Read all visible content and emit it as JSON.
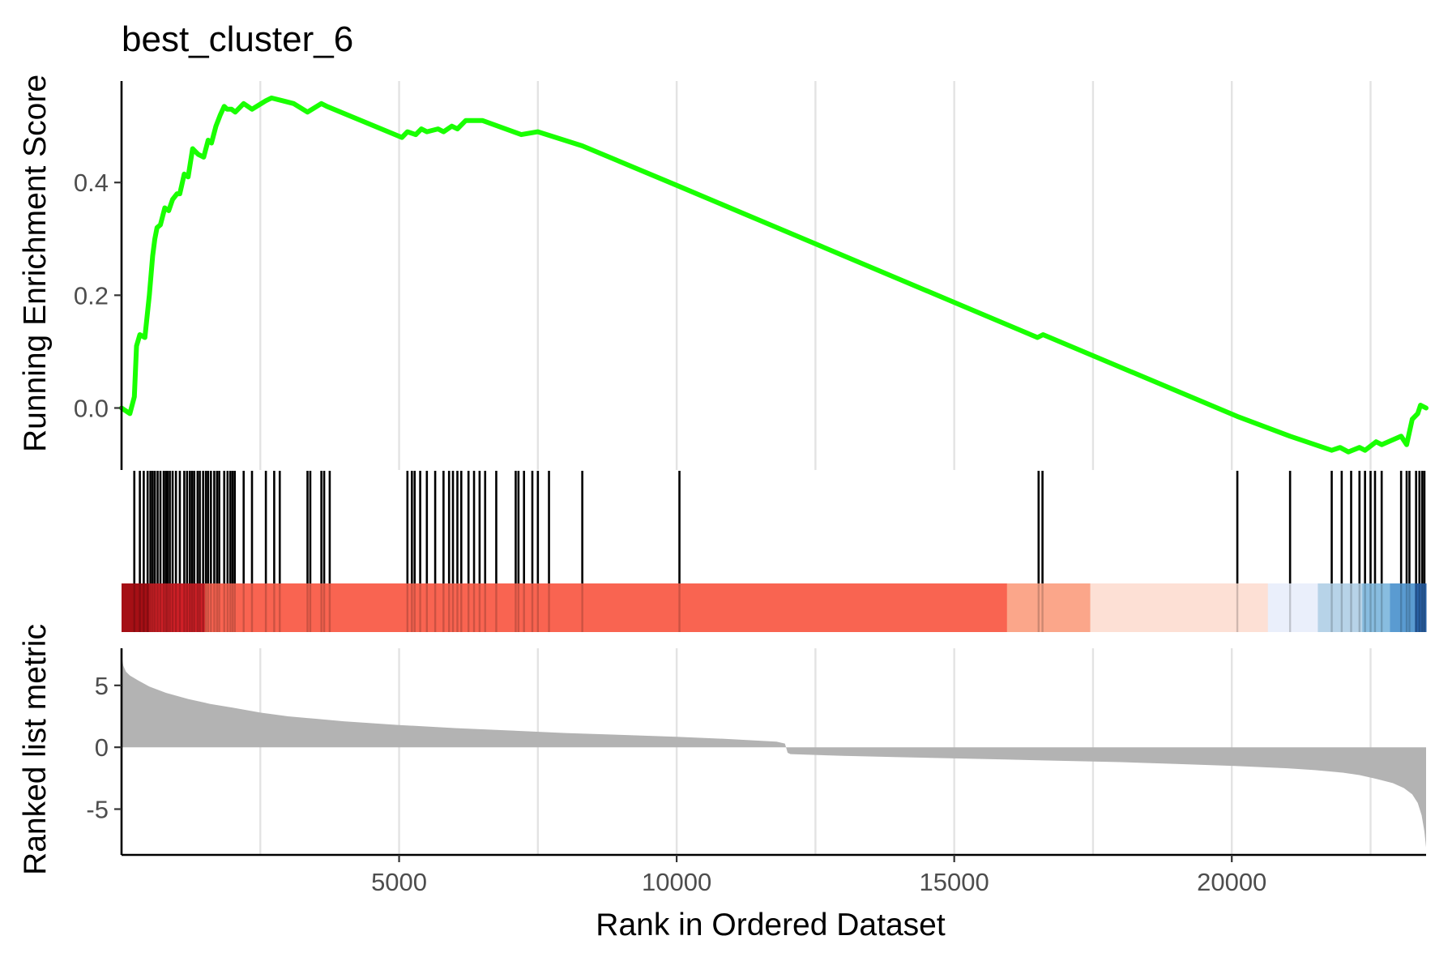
{
  "chart_data": {
    "type": "line",
    "title": "best_cluster_6",
    "xlabel": "Rank in Ordered Dataset",
    "x_range": [
      0,
      23500
    ],
    "x_ticks": [
      5000,
      10000,
      15000,
      20000
    ],
    "x_tick_labels": [
      "5000",
      "10000",
      "15000",
      "20000"
    ],
    "grid_x": [
      2500,
      5000,
      7500,
      10000,
      12500,
      15000,
      17500,
      20000,
      22500
    ],
    "panels": {
      "running_score": {
        "ylabel": "Running Enrichment Score",
        "ylim": [
          -0.11,
          0.58
        ],
        "y_ticks": [
          0.0,
          0.2,
          0.4
        ],
        "y_tick_labels": [
          "0.0",
          "0.2",
          "0.4"
        ],
        "line_color": "#19ff00",
        "series": {
          "x": [
            0,
            150,
            230,
            270,
            330,
            420,
            500,
            560,
            600,
            640,
            700,
            780,
            850,
            920,
            1000,
            1050,
            1130,
            1200,
            1280,
            1330,
            1380,
            1480,
            1560,
            1620,
            1700,
            1780,
            1850,
            1900,
            1980,
            2050,
            2200,
            2350,
            2600,
            2700,
            2900,
            3100,
            3350,
            3600,
            3700,
            5050,
            5150,
            5300,
            5400,
            5500,
            5700,
            5800,
            5950,
            6050,
            6200,
            6300,
            6500,
            7200,
            7500,
            8300,
            10000,
            16500,
            16600,
            20100,
            21050,
            21800,
            21950,
            22100,
            22300,
            22400,
            22600,
            22700,
            23050,
            23150,
            23250,
            23350,
            23400,
            23500
          ],
          "y": [
            0.0,
            -0.01,
            0.02,
            0.11,
            0.13,
            0.125,
            0.2,
            0.27,
            0.3,
            0.32,
            0.325,
            0.355,
            0.35,
            0.37,
            0.38,
            0.38,
            0.415,
            0.41,
            0.46,
            0.455,
            0.45,
            0.445,
            0.475,
            0.47,
            0.5,
            0.52,
            0.535,
            0.53,
            0.53,
            0.525,
            0.54,
            0.53,
            0.545,
            0.55,
            0.545,
            0.54,
            0.525,
            0.54,
            0.535,
            0.48,
            0.49,
            0.485,
            0.495,
            0.49,
            0.495,
            0.49,
            0.5,
            0.495,
            0.51,
            0.51,
            0.51,
            0.485,
            0.49,
            0.465,
            0.395,
            0.125,
            0.13,
            -0.015,
            -0.05,
            -0.075,
            -0.07,
            -0.078,
            -0.07,
            -0.075,
            -0.06,
            -0.065,
            -0.05,
            -0.065,
            -0.02,
            -0.01,
            0.005,
            0.0
          ]
        }
      },
      "hits": {
        "positions": [
          230,
          330,
          400,
          470,
          520,
          560,
          600,
          650,
          700,
          760,
          800,
          830,
          870,
          920,
          980,
          1050,
          1130,
          1180,
          1230,
          1270,
          1310,
          1370,
          1410,
          1470,
          1520,
          1560,
          1610,
          1670,
          1720,
          1760,
          1850,
          1910,
          1960,
          2000,
          2040,
          2200,
          2350,
          2600,
          2750,
          2850,
          3350,
          3400,
          3600,
          3650,
          3750,
          5150,
          5230,
          5280,
          5380,
          5500,
          5650,
          5800,
          5900,
          5970,
          6050,
          6120,
          6250,
          6350,
          6450,
          6550,
          6750,
          7100,
          7150,
          7250,
          7400,
          7500,
          7700,
          8300,
          10050,
          16520,
          16590,
          20100,
          21050,
          21800,
          21980,
          22150,
          22300,
          22400,
          22500,
          22580,
          22700,
          23050,
          23150,
          23200,
          23320,
          23380,
          23430,
          23470
        ]
      },
      "color_band": {
        "segments": [
          {
            "from": 0,
            "to": 500,
            "color": "#a50f15"
          },
          {
            "from": 500,
            "to": 1500,
            "color": "#d02027"
          },
          {
            "from": 1500,
            "to": 15950,
            "color": "#f96451"
          },
          {
            "from": 15950,
            "to": 17450,
            "color": "#fba68a"
          },
          {
            "from": 17450,
            "to": 20650,
            "color": "#fde0d5"
          },
          {
            "from": 20650,
            "to": 21550,
            "color": "#eaeffb"
          },
          {
            "from": 21550,
            "to": 22350,
            "color": "#b7d3e8"
          },
          {
            "from": 22350,
            "to": 22850,
            "color": "#88bde0"
          },
          {
            "from": 22850,
            "to": 23300,
            "color": "#5a9bd1"
          },
          {
            "from": 23300,
            "to": 23500,
            "color": "#2a62a8"
          }
        ]
      },
      "ranked_metric": {
        "ylabel": "Ranked list metric",
        "ylim": [
          -8.7,
          8.0
        ],
        "y_ticks": [
          5,
          0,
          -5
        ],
        "y_tick_labels": [
          "5",
          "0",
          "-5"
        ],
        "fill_color": "#b3b3b3",
        "series": {
          "x": [
            0,
            30,
            80,
            150,
            300,
            500,
            800,
            1200,
            1600,
            2000,
            2500,
            3000,
            3500,
            4000,
            5000,
            6000,
            7000,
            8000,
            9000,
            10000,
            11000,
            11800,
            11950,
            12000,
            12050,
            13000,
            14000,
            15000,
            16000,
            17000,
            18000,
            19000,
            20000,
            21000,
            21500,
            22000,
            22300,
            22600,
            22900,
            23100,
            23250,
            23350,
            23420,
            23470,
            23500
          ],
          "y": [
            7.5,
            6.6,
            6.1,
            5.8,
            5.4,
            4.9,
            4.4,
            3.9,
            3.5,
            3.2,
            2.8,
            2.5,
            2.3,
            2.1,
            1.8,
            1.55,
            1.35,
            1.15,
            1.0,
            0.85,
            0.65,
            0.45,
            0.3,
            -0.45,
            -0.55,
            -0.7,
            -0.8,
            -0.9,
            -1.0,
            -1.1,
            -1.2,
            -1.35,
            -1.5,
            -1.7,
            -1.85,
            -2.05,
            -2.25,
            -2.55,
            -2.9,
            -3.3,
            -3.8,
            -4.5,
            -5.5,
            -6.8,
            -8.1
          ]
        }
      }
    }
  }
}
